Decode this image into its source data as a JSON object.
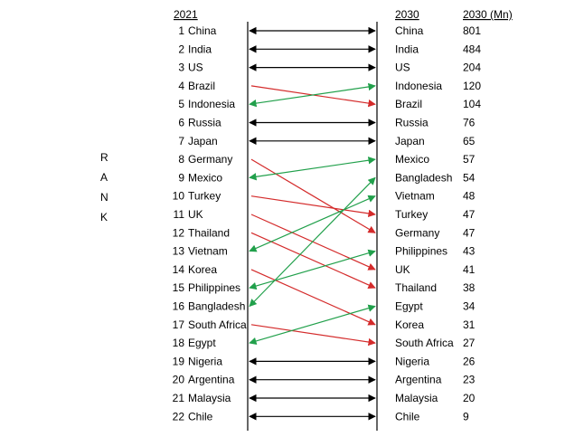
{
  "chart_data": {
    "type": "table",
    "header_left": "2021",
    "header_mid": "2030",
    "header_right": "2030 (Mn)",
    "side_label": [
      "R",
      "A",
      "N",
      "K"
    ],
    "ranks": [
      1,
      2,
      3,
      4,
      5,
      6,
      7,
      8,
      9,
      10,
      11,
      12,
      13,
      14,
      15,
      16,
      17,
      18,
      19,
      20,
      21,
      22
    ],
    "countries_2021": [
      "China",
      "India",
      "US",
      "Brazil",
      "Indonesia",
      "Russia",
      "Japan",
      "Germany",
      "Mexico",
      "Turkey",
      "UK",
      "Thailand",
      "Vietnam",
      "Korea",
      "Philippines",
      "Bangladesh",
      "South Africa",
      "Egypt",
      "Nigeria",
      "Argentina",
      "Malaysia",
      "Chile"
    ],
    "countries_2030": [
      "China",
      "India",
      "US",
      "Indonesia",
      "Brazil",
      "Russia",
      "Japan",
      "Mexico",
      "Bangladesh",
      "Vietnam",
      "Turkey",
      "Germany",
      "Philippines",
      "UK",
      "Thailand",
      "Egypt",
      "Korea",
      "South Africa",
      "Nigeria",
      "Argentina",
      "Malaysia",
      "Chile"
    ],
    "values_2030_mn": [
      801,
      484,
      204,
      120,
      104,
      76,
      65,
      57,
      54,
      48,
      47,
      47,
      43,
      41,
      38,
      34,
      31,
      27,
      26,
      23,
      20,
      9
    ],
    "colors": {
      "unchanged": "#000000",
      "down": "#d42b2b",
      "up": "#21a04b"
    }
  }
}
